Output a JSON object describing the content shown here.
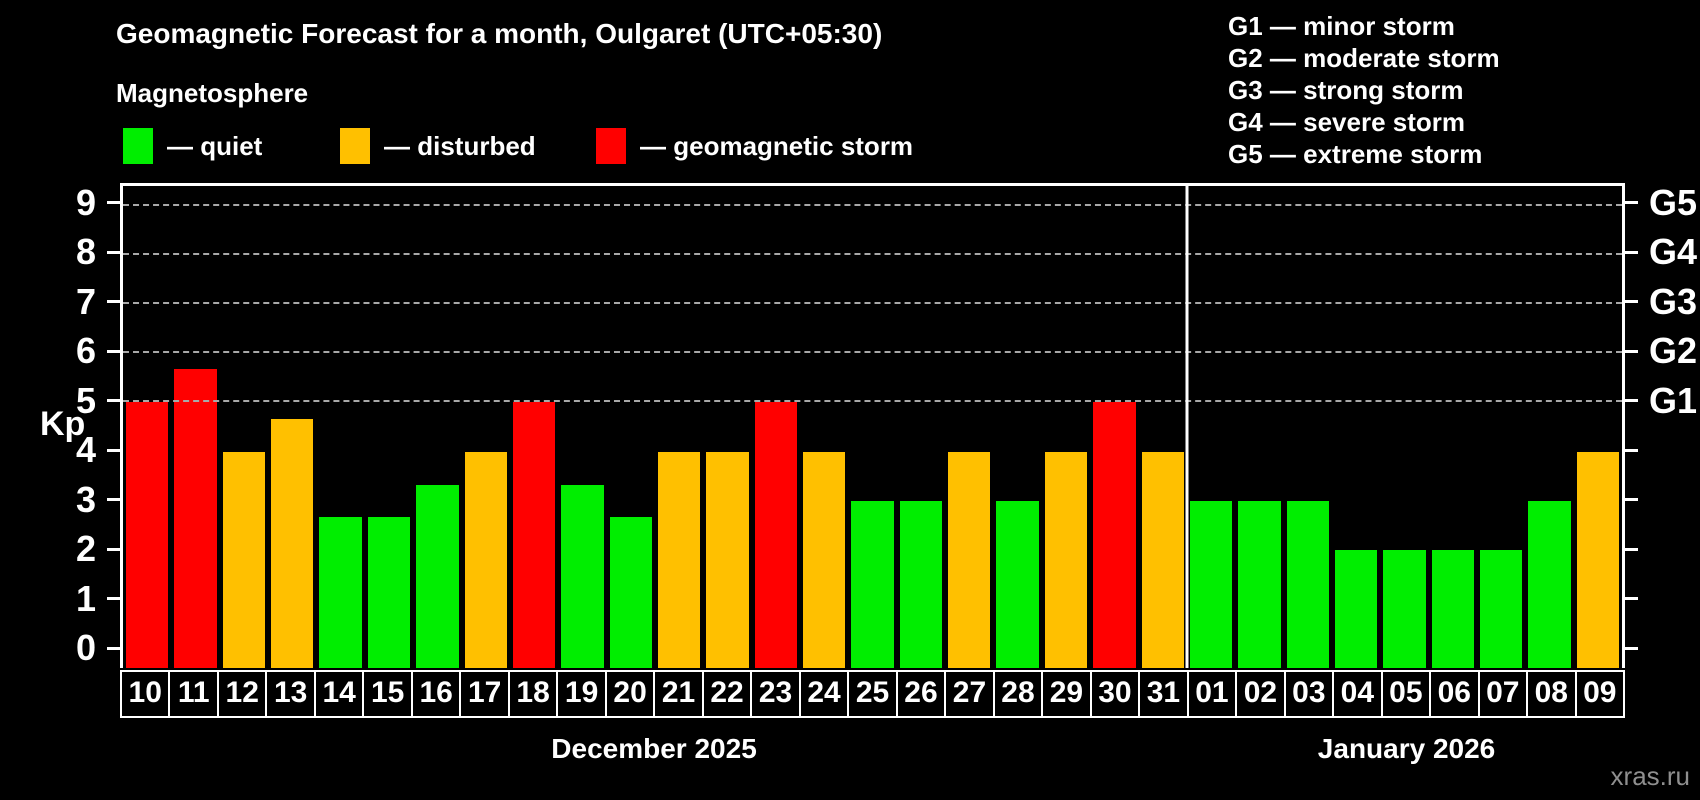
{
  "header": {
    "title": "Geomagnetic Forecast for a month, Oulgaret (UTC+05:30)",
    "subtitle": "Magnetosphere"
  },
  "legend": {
    "items": [
      {
        "label": "— quiet",
        "status": "quiet",
        "x": 123
      },
      {
        "label": "— disturbed",
        "status": "disturbed",
        "x": 340
      },
      {
        "label": "— geomagnetic storm",
        "status": "storm",
        "x": 596
      }
    ]
  },
  "g_legend": {
    "items": [
      "G1 — minor storm",
      "G2 — moderate storm",
      "G3 — strong storm",
      "G4 — severe storm",
      "G5 — extreme storm"
    ]
  },
  "chart_data": {
    "type": "bar",
    "title": "Geomagnetic Forecast for a month, Oulgaret (UTC+05:30)",
    "subtitle": "Magnetosphere",
    "ylabel": "Kp",
    "xlabel": "",
    "ylim": [
      -0.4,
      9.4
    ],
    "grid": "horizontal dashed lines at Kp 5–9 only",
    "legend_position": "top-left",
    "categories": [
      "10",
      "11",
      "12",
      "13",
      "14",
      "15",
      "16",
      "17",
      "18",
      "19",
      "20",
      "21",
      "22",
      "23",
      "24",
      "25",
      "26",
      "27",
      "28",
      "29",
      "30",
      "31",
      "01",
      "02",
      "03",
      "04",
      "05",
      "06",
      "07",
      "08",
      "09"
    ],
    "values": [
      5.0,
      5.67,
      4.0,
      4.67,
      2.67,
      2.67,
      3.33,
      4.0,
      5.0,
      3.33,
      2.67,
      4.0,
      4.0,
      5.0,
      4.0,
      3.0,
      3.0,
      4.0,
      3.0,
      4.0,
      5.0,
      4.0,
      3.0,
      3.0,
      3.0,
      2.0,
      2.0,
      2.0,
      2.0,
      3.0,
      4.0
    ],
    "statuses": [
      "storm",
      "storm",
      "disturbed",
      "disturbed",
      "quiet",
      "quiet",
      "quiet",
      "disturbed",
      "storm",
      "quiet",
      "quiet",
      "disturbed",
      "disturbed",
      "storm",
      "disturbed",
      "quiet",
      "quiet",
      "disturbed",
      "quiet",
      "disturbed",
      "storm",
      "disturbed",
      "quiet",
      "quiet",
      "quiet",
      "quiet",
      "quiet",
      "quiet",
      "quiet",
      "quiet",
      "disturbed"
    ],
    "status_colors": {
      "quiet": "#00ee00",
      "disturbed": "#ffc000",
      "storm": "#ff0000"
    },
    "y_ticks": [
      0,
      1,
      2,
      3,
      4,
      5,
      6,
      7,
      8,
      9
    ],
    "gridlines_at": [
      5,
      6,
      7,
      8,
      9
    ],
    "right_axis_labels": [
      {
        "kp": 5,
        "label": "G1"
      },
      {
        "kp": 6,
        "label": "G2"
      },
      {
        "kp": 7,
        "label": "G3"
      },
      {
        "kp": 8,
        "label": "G4"
      },
      {
        "kp": 9,
        "label": "G5"
      }
    ],
    "months": [
      {
        "label": "December 2025",
        "days": 22
      },
      {
        "label": "January 2026",
        "days": 9
      }
    ]
  },
  "watermark": "xras.ru"
}
